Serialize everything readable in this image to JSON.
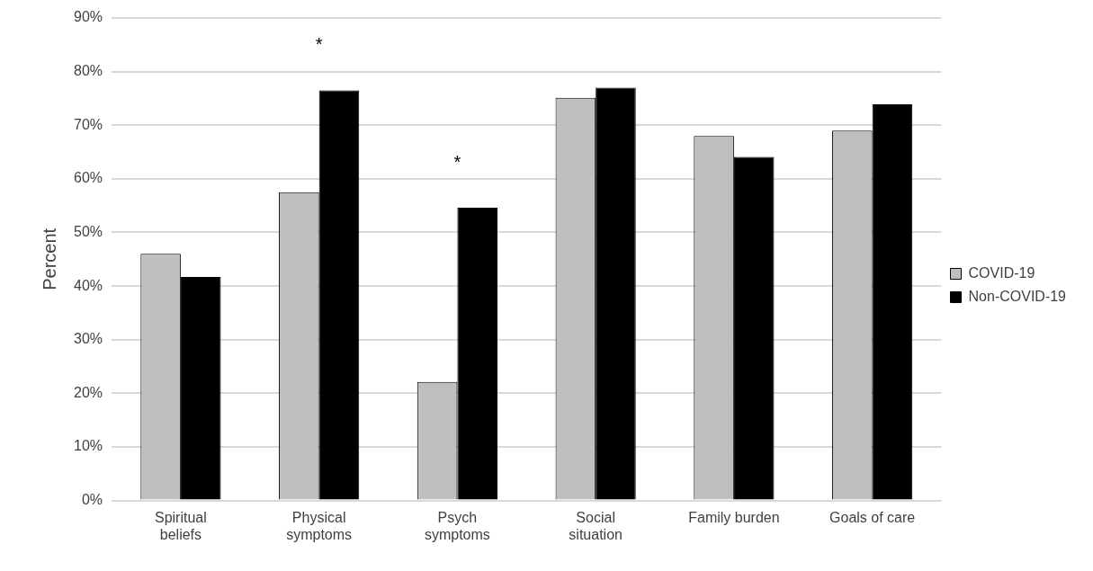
{
  "chart_data": {
    "type": "bar",
    "ylabel": "Percent",
    "categories": [
      "Spiritual beliefs",
      "Physical symptoms",
      "Psych symptoms",
      "Social situation",
      "Family burden",
      "Goals of care"
    ],
    "series": [
      {
        "name": "COVID-19",
        "color": "#bfbfbf",
        "values": [
          46.0,
          57.5,
          22.1,
          75.1,
          68.0,
          69.0
        ]
      },
      {
        "name": "Non-COVID-19",
        "color": "#000000",
        "values": [
          41.7,
          76.5,
          54.6,
          77.0,
          64.1,
          73.9
        ]
      }
    ],
    "ylim": [
      0,
      90
    ],
    "yticks": [
      {
        "value": 0,
        "label": "0%"
      },
      {
        "value": 10,
        "label": "10%"
      },
      {
        "value": 20,
        "label": "20%"
      },
      {
        "value": 30,
        "label": "30%"
      },
      {
        "value": 40,
        "label": "40%"
      },
      {
        "value": 50,
        "label": "50%"
      },
      {
        "value": 60,
        "label": "60%"
      },
      {
        "value": 70,
        "label": "70%"
      },
      {
        "value": 80,
        "label": "80%"
      },
      {
        "value": 90,
        "label": "90%"
      }
    ],
    "grid": "y",
    "legend": "right",
    "annotations": [
      {
        "text": "*",
        "x": "Physical symptoms",
        "y": 76.5
      },
      {
        "text": "*",
        "x": "Psych symptoms",
        "y": 54.6
      }
    ]
  }
}
